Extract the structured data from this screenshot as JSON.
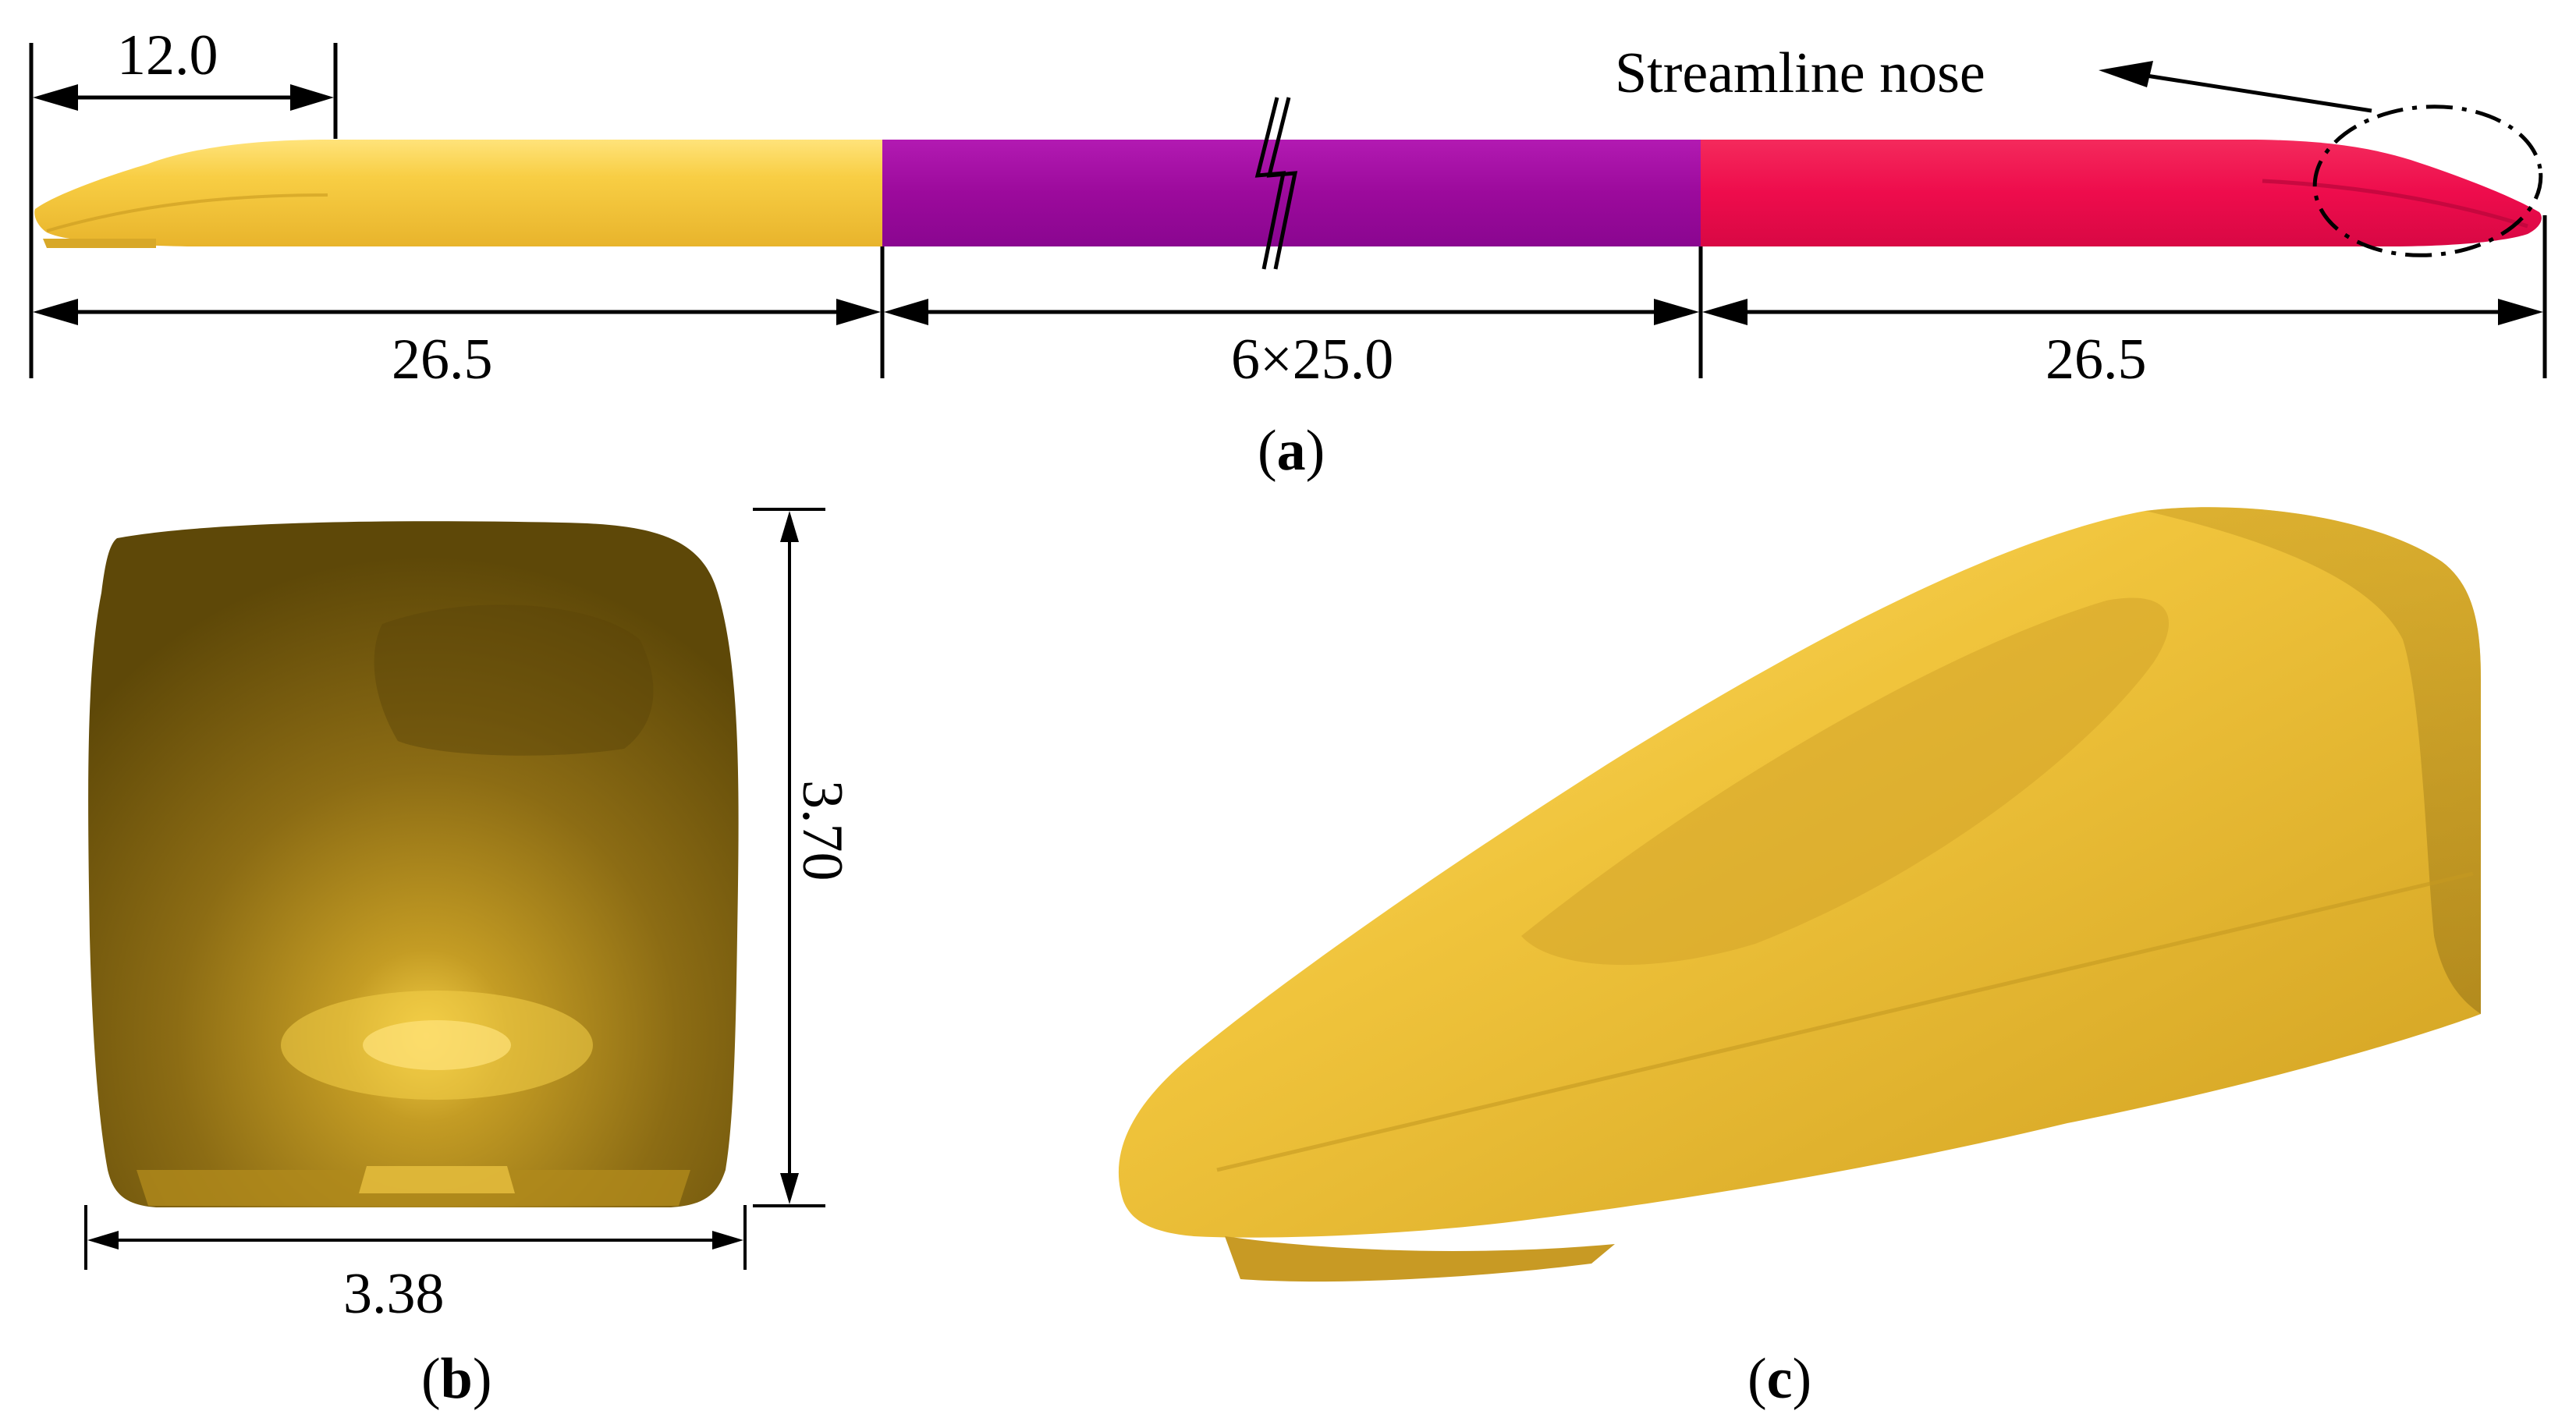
{
  "figure": {
    "panel_a": {
      "label": "a",
      "dims": {
        "nose_length": "12.0",
        "head_car": "26.5",
        "middle_cars": "6×25.0",
        "tail_car": "26.5"
      },
      "annotation": "Streamline nose",
      "cars": [
        {
          "name": "head-car",
          "color": "#F2C53C"
        },
        {
          "name": "middle-car",
          "color": "#9A0A9A"
        },
        {
          "name": "tail-car",
          "color": "#EC0C4C"
        }
      ]
    },
    "panel_b": {
      "label": "b",
      "dims": {
        "width": "3.38",
        "height": "3.70"
      },
      "color": "#8A6C10"
    },
    "panel_c": {
      "label": "c",
      "color": "#E0B434"
    }
  }
}
